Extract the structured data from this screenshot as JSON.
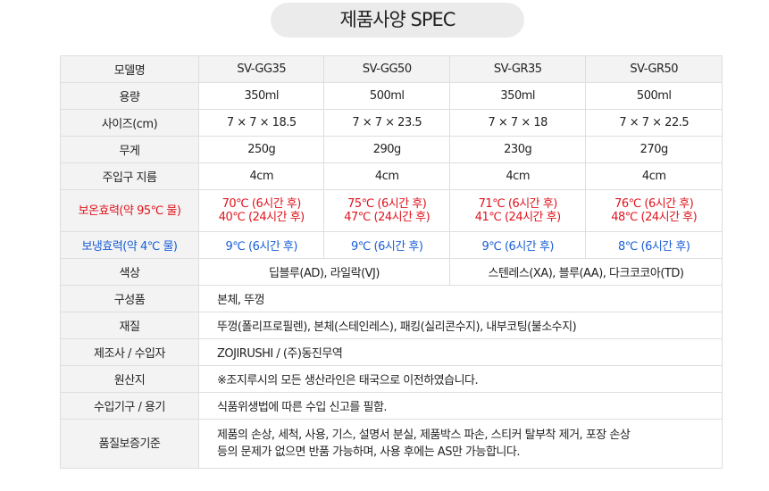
{
  "title": "제품사양 SPEC",
  "colors": {
    "warm": "#e0141e",
    "cold": "#1a5fd6"
  },
  "table": {
    "header": {
      "label": "모델명",
      "models": [
        "SV-GG35",
        "SV-GG50",
        "SV-GR35",
        "SV-GR50"
      ]
    },
    "capacity": {
      "label": "용량",
      "values": [
        "350ml",
        "500ml",
        "350ml",
        "500ml"
      ]
    },
    "size": {
      "label": "사이즈(cm)",
      "values": [
        "7 × 7 × 18.5",
        "7 × 7 × 23.5",
        "7 × 7 × 18",
        "7 × 7 × 22.5"
      ]
    },
    "weight": {
      "label": "무게",
      "values": [
        "250g",
        "290g",
        "230g",
        "270g"
      ]
    },
    "mouth": {
      "label": "주입구 지름",
      "values": [
        "4cm",
        "4cm",
        "4cm",
        "4cm"
      ]
    },
    "warm": {
      "label": "보온효력(약 95℃ 물)",
      "line1": [
        "70℃ (6시간 후)",
        "75℃ (6시간 후)",
        "71℃ (6시간 후)",
        "76℃ (6시간 후)"
      ],
      "line2": [
        "40℃ (24시간 후)",
        "47℃ (24시간 후)",
        "41℃ (24시간 후)",
        "48℃ (24시간 후)"
      ]
    },
    "cold": {
      "label": "보냉효력(약 4℃ 물)",
      "values": [
        "9℃ (6시간 후)",
        "9℃ (6시간 후)",
        "9℃ (6시간 후)",
        "8℃ (6시간 후)"
      ]
    },
    "color": {
      "label": "색상",
      "values": [
        "딥블루(AD), 라일락(VJ)",
        "스텐레스(XA), 블루(AA), 다크코코아(TD)"
      ]
    },
    "parts": {
      "label": "구성품",
      "value": "본체, 뚜껑"
    },
    "material": {
      "label": "재질",
      "value": "뚜껑(폴리프로필렌), 본체(스테인레스), 패킹(실리콘수지), 내부코팅(불소수지)"
    },
    "maker": {
      "label": "제조사 / 수입자",
      "value": "ZOJIRUSHI / (주)동진무역"
    },
    "origin": {
      "label": "원산지",
      "value": "※조지루시의 모든 생산라인은 태국으로 이전하였습니다."
    },
    "import": {
      "label": "수입기구 / 용기",
      "value": "식품위생법에 따른 수입 신고를 필함."
    },
    "warranty": {
      "label": "품질보증기준",
      "line1": "제품의 손상, 세척, 사용, 기스, 설명서 분실, 제품박스 파손, 스티커 탈부착 제거, 포장 손상",
      "line2": "등의 문제가 없으면 반품 가능하며, 사용 후에는 AS만 가능합니다."
    }
  }
}
